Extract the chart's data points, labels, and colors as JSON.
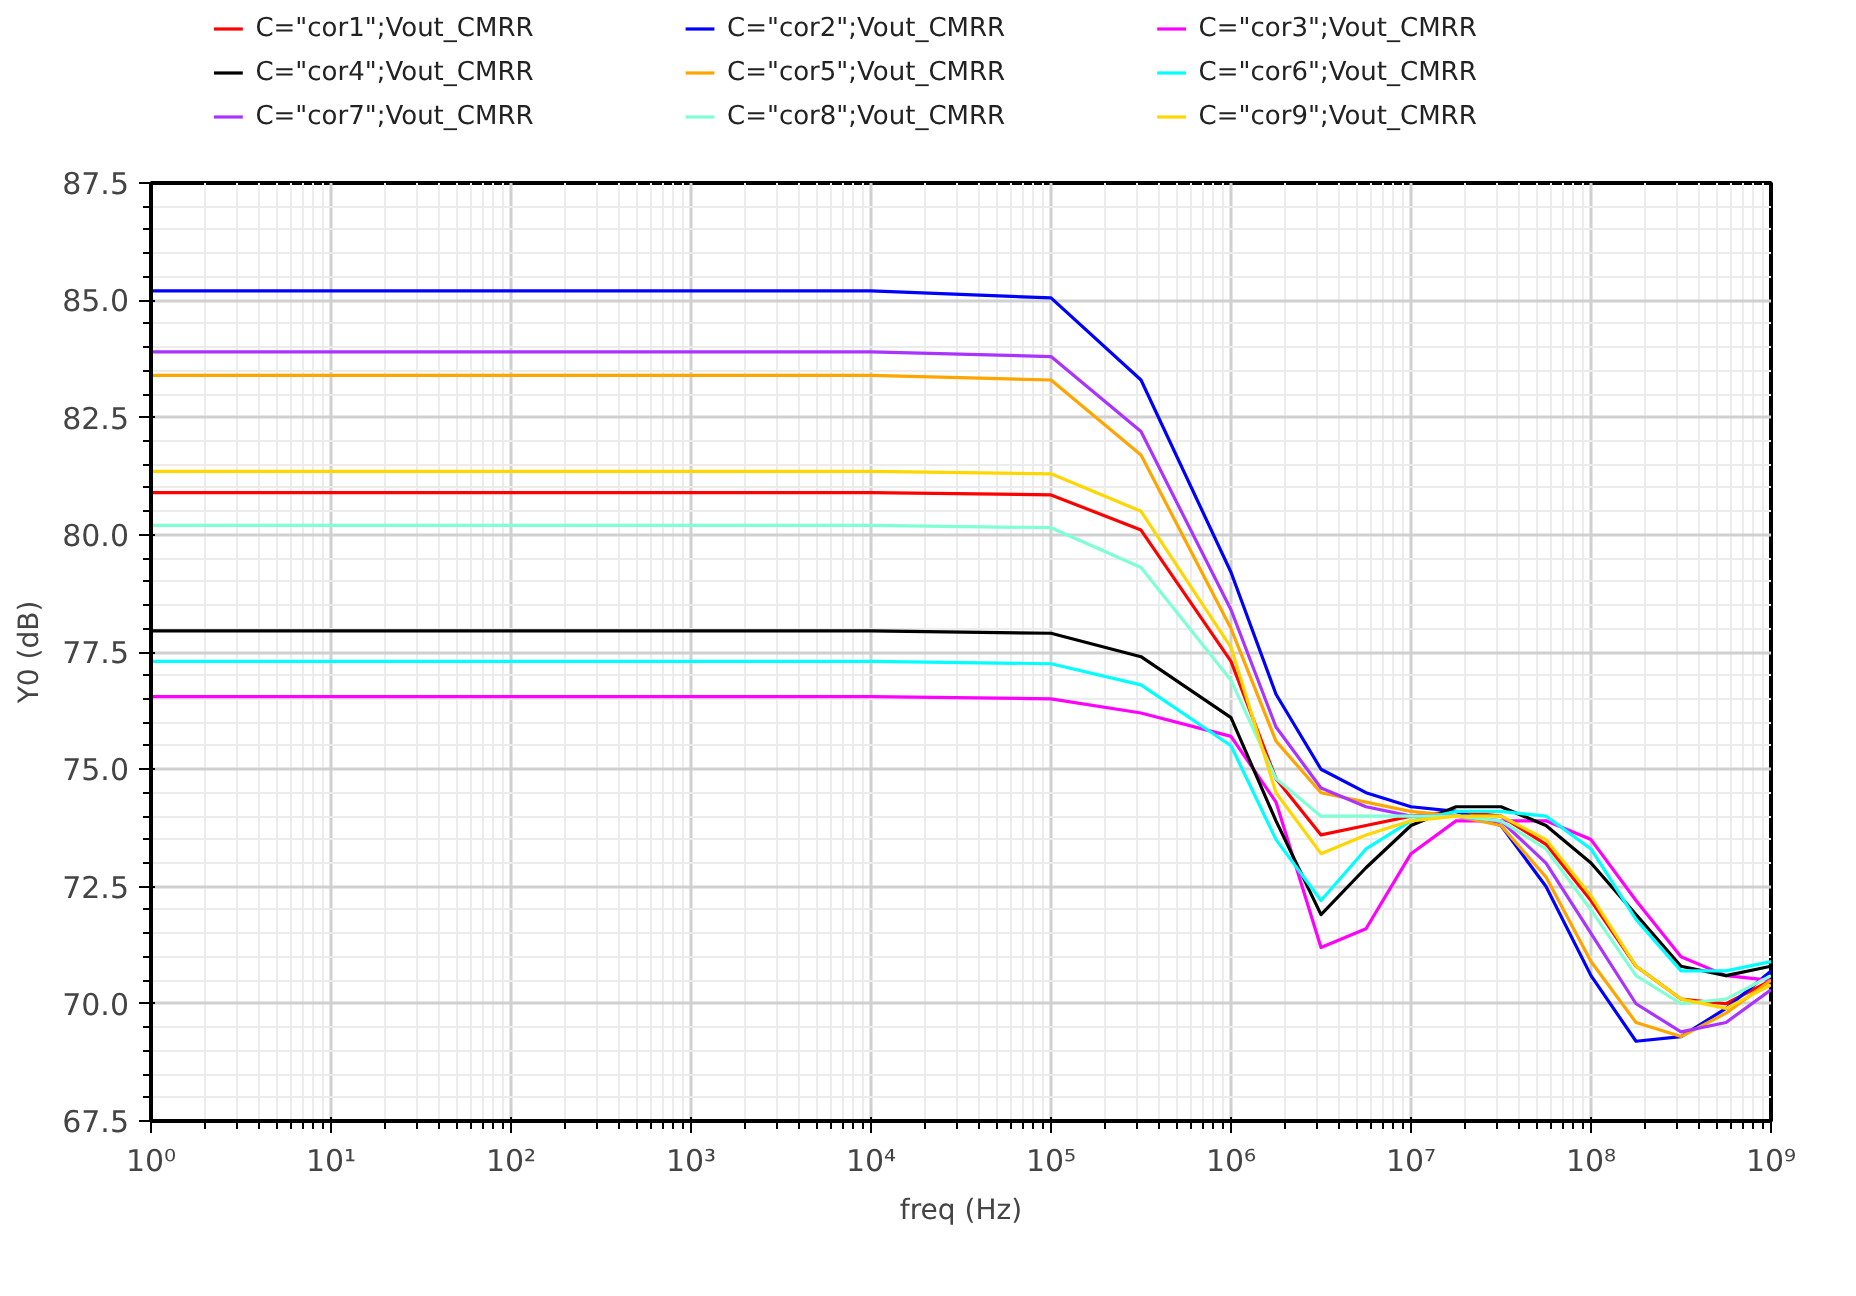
{
  "chart_data": {
    "type": "line",
    "xlabel": "freq (Hz)",
    "ylabel": "Y0 (dB)",
    "log": "x",
    "grid": true,
    "legend": "top",
    "x": [
      1,
      10000,
      100000,
      316228,
      1000000,
      1778279,
      3162278,
      5623413,
      10000000,
      17782794,
      31622777,
      56234133,
      100000000,
      177827941,
      316227766,
      562341325,
      1000000000
    ],
    "xlim": [
      1,
      1000000000
    ],
    "xticks": [
      {
        "value": 1,
        "label": "10⁰"
      },
      {
        "value": 10,
        "label": "10¹"
      },
      {
        "value": 100,
        "label": "10²"
      },
      {
        "value": 1000,
        "label": "10³"
      },
      {
        "value": 10000,
        "label": "10⁴"
      },
      {
        "value": 100000,
        "label": "10⁵"
      },
      {
        "value": 1000000,
        "label": "10⁶"
      },
      {
        "value": 10000000,
        "label": "10⁷"
      },
      {
        "value": 100000000,
        "label": "10⁸"
      },
      {
        "value": 1000000000,
        "label": "10⁹"
      }
    ],
    "ylim": [
      67.5,
      87.5
    ],
    "yticks": [
      67.5,
      {
        "value": 70,
        "label": "70.0"
      },
      72.5,
      {
        "value": 75,
        "label": "75.0"
      },
      77.5,
      {
        "value": 80,
        "label": "80.0"
      },
      82.5,
      {
        "value": 85,
        "label": "85.0"
      },
      87.5
    ],
    "series": [
      {
        "name": "C=\"cor1\";Vout_CMRR",
        "color": "#ff0000",
        "values": [
          80.9,
          80.9,
          80.85,
          80.1,
          77.3,
          74.8,
          73.6,
          73.8,
          74.0,
          74.1,
          74.0,
          73.4,
          72.2,
          70.8,
          70.1,
          70.0,
          70.5
        ]
      },
      {
        "name": "C=\"cor2\";Vout_CMRR",
        "color": "#0000ff",
        "values": [
          85.2,
          85.2,
          85.05,
          83.3,
          79.2,
          76.6,
          75.0,
          74.5,
          74.2,
          74.1,
          73.8,
          72.5,
          70.6,
          69.2,
          69.3,
          69.9,
          70.7
        ]
      },
      {
        "name": "C=\"cor3\";Vout_CMRR",
        "color": "#ff00ff",
        "values": [
          76.55,
          76.55,
          76.5,
          76.2,
          75.7,
          74.3,
          71.2,
          71.6,
          73.2,
          73.9,
          73.9,
          73.9,
          73.5,
          72.2,
          71.0,
          70.6,
          70.5
        ]
      },
      {
        "name": "C=\"cor4\";Vout_CMRR",
        "color": "#000000",
        "values": [
          77.95,
          77.95,
          77.9,
          77.4,
          76.1,
          73.9,
          71.9,
          72.9,
          73.8,
          74.2,
          74.2,
          73.8,
          73.0,
          71.9,
          70.8,
          70.6,
          70.8
        ]
      },
      {
        "name": "C=\"cor5\";Vout_CMRR",
        "color": "#ffa500",
        "values": [
          83.4,
          83.4,
          83.3,
          81.7,
          78.0,
          75.6,
          74.5,
          74.3,
          74.1,
          74.0,
          73.8,
          72.7,
          70.9,
          69.6,
          69.3,
          69.8,
          70.5
        ]
      },
      {
        "name": "C=\"cor6\";Vout_CMRR",
        "color": "#00ffff",
        "values": [
          77.3,
          77.3,
          77.25,
          76.8,
          75.5,
          73.5,
          72.2,
          73.3,
          73.9,
          74.1,
          74.1,
          74.0,
          73.3,
          71.8,
          70.7,
          70.7,
          70.9
        ]
      },
      {
        "name": "C=\"cor7\";Vout_CMRR",
        "color": "#aa33ff",
        "values": [
          83.9,
          83.9,
          83.8,
          82.2,
          78.4,
          75.9,
          74.6,
          74.2,
          74.0,
          74.0,
          73.9,
          73.0,
          71.5,
          70.0,
          69.4,
          69.6,
          70.3
        ]
      },
      {
        "name": "C=\"cor8\";Vout_CMRR",
        "color": "#7fffd4",
        "values": [
          80.2,
          80.2,
          80.15,
          79.3,
          76.9,
          74.8,
          74.0,
          74.0,
          74.0,
          74.0,
          73.9,
          73.3,
          72.0,
          70.6,
          70.0,
          70.1,
          70.6
        ]
      },
      {
        "name": "C=\"cor9\";Vout_CMRR",
        "color": "#ffd700",
        "values": [
          81.35,
          81.35,
          81.3,
          80.5,
          77.6,
          74.5,
          73.2,
          73.6,
          73.9,
          74.0,
          74.0,
          73.5,
          72.3,
          70.8,
          70.1,
          69.9,
          70.4
        ]
      }
    ]
  }
}
